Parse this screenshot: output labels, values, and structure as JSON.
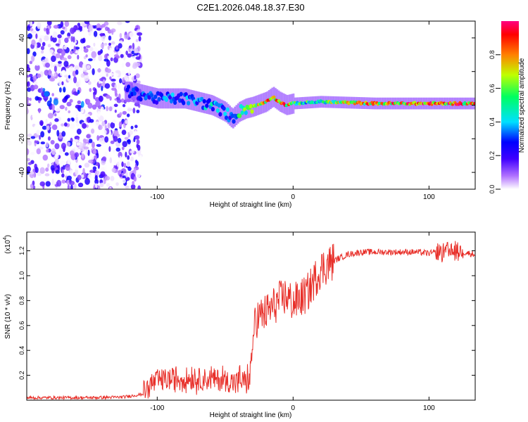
{
  "title": "C2E1.2026.048.18.37.E30",
  "chart_data": [
    {
      "type": "heatmap",
      "xlabel": "Height of straight line (km)",
      "ylabel": "Frequency (Hz)",
      "xlim": [
        -196,
        134
      ],
      "ylim": [
        -50,
        50
      ],
      "x_ticks": [
        -100,
        0,
        100
      ],
      "y_ticks": [
        -40,
        -20,
        0,
        20,
        40
      ],
      "colorbar": {
        "label": "Normalized spectral amplitude",
        "range": [
          0,
          1
        ],
        "ticks": [
          0.0,
          0.2,
          0.4,
          0.6,
          0.8
        ],
        "tick_labels": [
          "0.0",
          "0.2",
          "0.4",
          "0.6",
          "0.8"
        ],
        "colors": [
          "#ffffff",
          "#b070ff",
          "#4000ff",
          "#0000ff",
          "#00e0ff",
          "#00ff60",
          "#c0ff00",
          "#ff8000",
          "#ff0000",
          "#ff0080"
        ]
      },
      "ridge": {
        "x": [
          -120,
          -100,
          -80,
          -60,
          -50,
          -45,
          -40,
          -35,
          -30,
          -20,
          -15,
          -10,
          -5,
          0,
          20,
          60,
          100,
          134
        ],
        "freq": [
          8,
          4,
          4,
          0,
          -4,
          -8,
          -4,
          -2,
          -1,
          2,
          5,
          2,
          0,
          1,
          2,
          1,
          1,
          1
        ],
        "amplitude": [
          0.3,
          0.35,
          0.35,
          0.45,
          0.4,
          0.3,
          0.55,
          0.6,
          0.65,
          0.8,
          0.8,
          0.85,
          0.9,
          0.55,
          0.6,
          0.85,
          0.95,
          0.85
        ]
      },
      "noise_region_x": [
        -196,
        -120
      ]
    },
    {
      "type": "line",
      "xlabel": "Height of straight line (km)",
      "ylabel": "SNR (10 * v/v)",
      "y_scale_label": "(x10",
      "y_scale_exp": "4",
      "xlim": [
        -196,
        134
      ],
      "ylim": [
        0,
        13500
      ],
      "x_ticks": [
        -100,
        0,
        100
      ],
      "y_ticks": [
        2000,
        4000,
        6000,
        8000,
        10000,
        12000
      ],
      "y_tick_labels": [
        "0.2",
        "0.4",
        "0.6",
        "0.8",
        "1.0",
        "1.2"
      ],
      "color": "#e8302a",
      "series": [
        {
          "name": "SNR",
          "x": [
            -196,
            -150,
            -125,
            -110,
            -100,
            -90,
            -80,
            -70,
            -60,
            -50,
            -45,
            -32,
            -28,
            -20,
            -15,
            -10,
            -5,
            0,
            10,
            20,
            30,
            40,
            50,
            60,
            70,
            80,
            90,
            100,
            110,
            120,
            134
          ],
          "y": [
            200,
            200,
            250,
            500,
            1400,
            1500,
            1600,
            1500,
            1500,
            1400,
            1300,
            1400,
            6500,
            7000,
            7500,
            8000,
            8400,
            7800,
            8500,
            10500,
            11200,
            11700,
            11900,
            11900,
            11900,
            11900,
            11900,
            11800,
            11900,
            12000,
            11700
          ]
        }
      ]
    }
  ]
}
